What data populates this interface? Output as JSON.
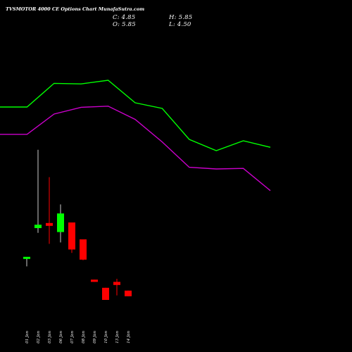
{
  "header": {
    "title": "TVSMOTOR 4000  CE Options  Chart MunafaSutra.com",
    "close": "C: 4.85",
    "high": "H: 5.85",
    "open": "O: 5.85",
    "low": "L: 4.50"
  },
  "colors": {
    "background": "#000000",
    "up_candle": "#00ff00",
    "down_candle": "#ff0000",
    "upper_line": "#00ff00",
    "lower_line": "#cc00cc",
    "text": "#ffffff"
  },
  "chart_data": {
    "type": "candlestick",
    "categories": [
      "01 Jan",
      "02 Jan",
      "03 Jan",
      "06 Jan",
      "07 Jan",
      "08 Jan",
      "09 Jan",
      "10 Jan",
      "13 Jan",
      "14 Jan"
    ],
    "ohlc": [
      {
        "o": 8.5,
        "h": 8.7,
        "l": 5.4,
        "c": 8.8
      },
      {
        "o": 19.0,
        "h": 46.8,
        "l": 17.3,
        "c": 20.2
      },
      {
        "o": 20.8,
        "h": 37.1,
        "l": 13.4,
        "c": 19.8
      },
      {
        "o": 17.6,
        "h": 27.4,
        "l": 13.9,
        "c": 24.2
      },
      {
        "o": 21.0,
        "h": 21.0,
        "l": 10.2,
        "c": 11.4
      },
      {
        "o": 15.0,
        "h": 15.0,
        "l": 7.6,
        "c": 7.8
      },
      {
        "o": 0.7,
        "h": 0.7,
        "l": -0.1,
        "c": -0.1
      },
      {
        "o": -2.2,
        "h": -2.2,
        "l": -6.5,
        "c": -6.5
      },
      {
        "o": -0.1,
        "h": 1.0,
        "l": -4.9,
        "c": -1.2
      },
      {
        "o": -3.2,
        "h": -3.2,
        "l": -5.2,
        "c": -5.2
      }
    ],
    "upper_line": [
      62,
      62,
      70.4,
      70.2,
      71.5,
      63.5,
      61.5,
      50.5,
      46.5,
      50,
      47.7
    ],
    "lower_line": [
      52.3,
      52.3,
      59.5,
      61.9,
      62.3,
      57.6,
      49.6,
      40.6,
      40.0,
      40.2,
      32.3
    ]
  }
}
